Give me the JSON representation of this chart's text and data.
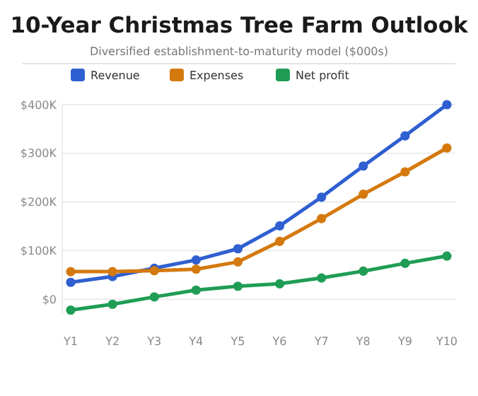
{
  "chart_data": {
    "type": "line",
    "title": "10-Year Christmas Tree Farm Outlook",
    "subtitle": "Diversified establishment-to-maturity model ($000s)",
    "categories": [
      "Y1",
      "Y2",
      "Y3",
      "Y4",
      "Y5",
      "Y6",
      "Y7",
      "Y8",
      "Y9",
      "Y10"
    ],
    "series": [
      {
        "name": "Revenue",
        "color": "#2f5fd0",
        "values": [
          35,
          47,
          64,
          81,
          104,
          151,
          210,
          274,
          336,
          400
        ]
      },
      {
        "name": "Expenses",
        "color": "#d4790e",
        "values": [
          57,
          57,
          59,
          62,
          77,
          119,
          166,
          216,
          262,
          311
        ]
      },
      {
        "name": "Net profit",
        "color": "#1f9d55",
        "values": [
          -22,
          -10,
          5,
          19,
          27,
          32,
          44,
          58,
          74,
          89
        ]
      }
    ],
    "ylim": [
      -30,
      400
    ],
    "yticks": [
      {
        "value": 0,
        "label": "$0"
      },
      {
        "value": 100,
        "label": "$100K"
      },
      {
        "value": 200,
        "label": "$200K"
      },
      {
        "value": 300,
        "label": "$300K"
      },
      {
        "value": 400,
        "label": "$400K"
      }
    ],
    "grid": "y",
    "legend": "top",
    "marker": "circle",
    "line_style": "solid"
  }
}
